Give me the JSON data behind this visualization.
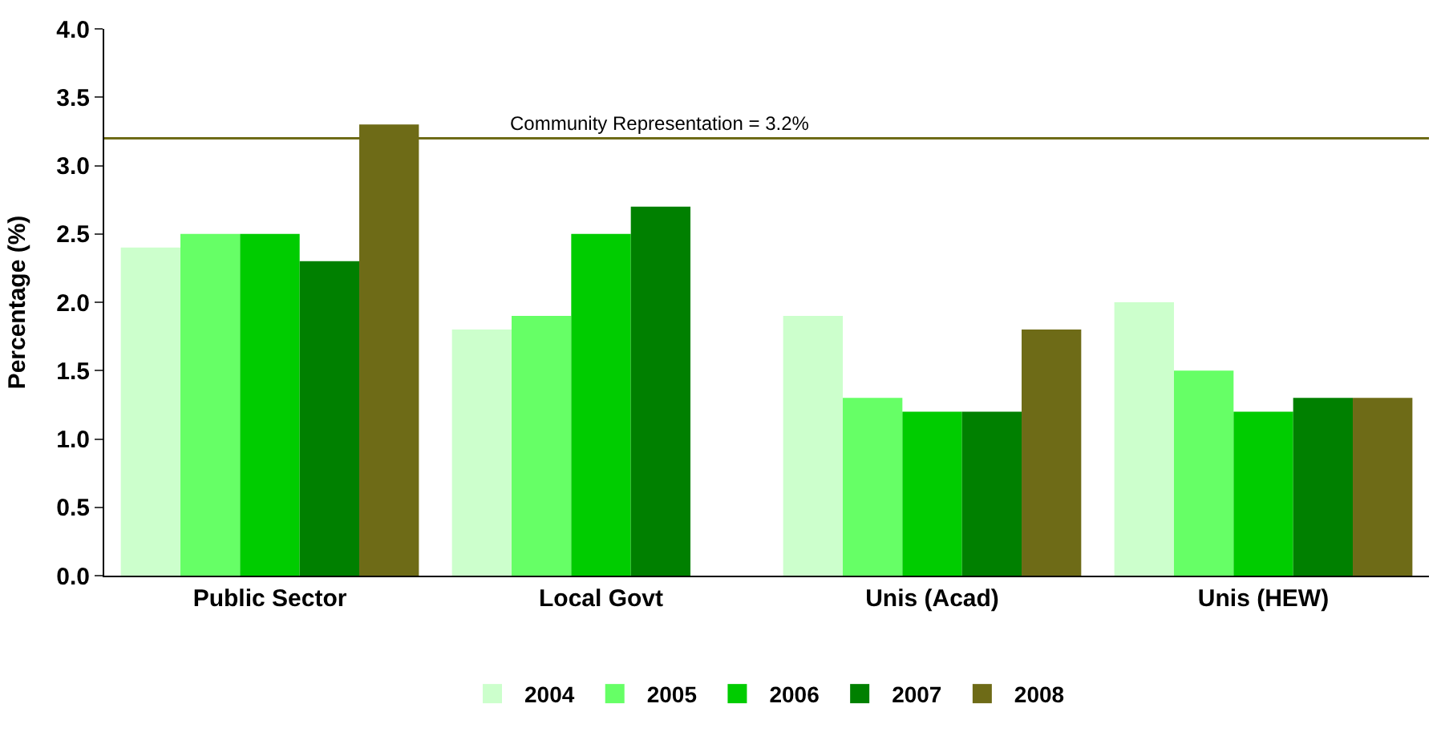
{
  "chart_data": {
    "type": "bar",
    "ylabel": "Percentage (%)",
    "categories": [
      "Public Sector",
      "Local Govt",
      "Unis (Acad)",
      "Unis (HEW)"
    ],
    "series": [
      {
        "name": "2004",
        "color": "#ccffcc",
        "values": [
          2.4,
          1.8,
          1.9,
          2.0
        ]
      },
      {
        "name": "2005",
        "color": "#66ff66",
        "values": [
          2.5,
          1.9,
          1.3,
          1.5
        ]
      },
      {
        "name": "2006",
        "color": "#00cc00",
        "values": [
          2.5,
          2.5,
          1.2,
          1.2
        ]
      },
      {
        "name": "2007",
        "color": "#008000",
        "values": [
          2.3,
          2.7,
          1.2,
          1.3
        ]
      },
      {
        "name": "2008",
        "color": "#6e6b17",
        "values": [
          3.3,
          null,
          1.8,
          1.3
        ]
      }
    ],
    "ylim": [
      0,
      4
    ],
    "yticks": [
      {
        "value": 0,
        "label": "0.0"
      },
      {
        "value": 0.5,
        "label": "0.5"
      },
      {
        "value": 1,
        "label": "1.0"
      },
      {
        "value": 1.5,
        "label": "1.5"
      },
      {
        "value": 2,
        "label": "2.0"
      },
      {
        "value": 2.5,
        "label": "2.5"
      },
      {
        "value": 3,
        "label": "3.0"
      },
      {
        "value": 3.5,
        "label": "3.5"
      },
      {
        "value": 4,
        "label": "4.0"
      }
    ],
    "ref_lines": [
      {
        "axis": "y",
        "value": 3.2,
        "label": "Community Representation = 3.2%",
        "color": "#6e6b17"
      }
    ],
    "legend": "bottom"
  }
}
